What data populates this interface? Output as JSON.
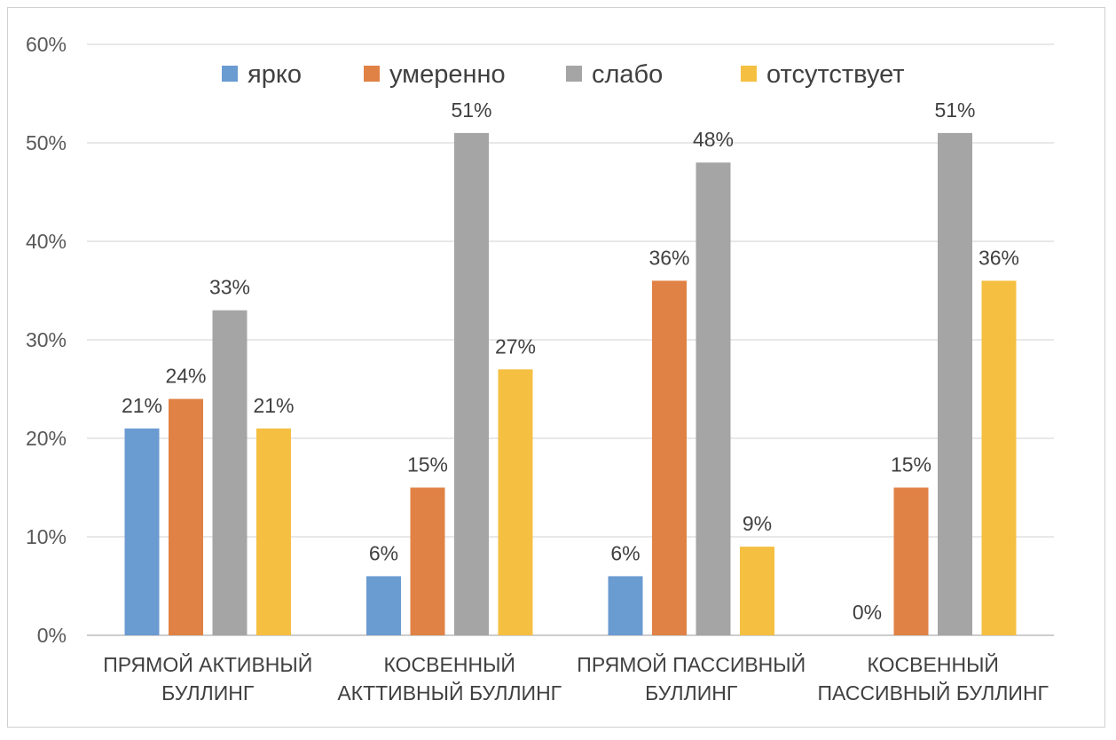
{
  "chart_data": {
    "type": "bar",
    "categories": [
      [
        "ПРЯМОЙ АКТИВНЫЙ",
        "БУЛЛИНГ"
      ],
      [
        "КОСВЕННЫЙ",
        "АКТТИВНЫЙ БУЛЛИНГ"
      ],
      [
        "ПРЯМОЙ ПАССИВНЫЙ",
        "БУЛЛИНГ"
      ],
      [
        "КОСВЕННЫЙ",
        "ПАССИВНЫЙ БУЛЛИНГ"
      ]
    ],
    "series": [
      {
        "name": "ярко",
        "color": "#6a9bd1",
        "values": [
          21,
          6,
          6,
          0
        ]
      },
      {
        "name": "умеренно",
        "color": "#e08245",
        "values": [
          24,
          15,
          36,
          15
        ]
      },
      {
        "name": "слабо",
        "color": "#a5a5a5",
        "values": [
          33,
          51,
          48,
          51
        ]
      },
      {
        "name": "отсутствует",
        "color": "#f5bf42",
        "values": [
          21,
          27,
          9,
          36
        ]
      }
    ],
    "ylim": [
      0,
      60
    ],
    "yticks": [
      "0%",
      "10%",
      "20%",
      "30%",
      "40%",
      "50%",
      "60%"
    ],
    "value_suffix": "%",
    "grid": true,
    "legend_position": "top"
  }
}
